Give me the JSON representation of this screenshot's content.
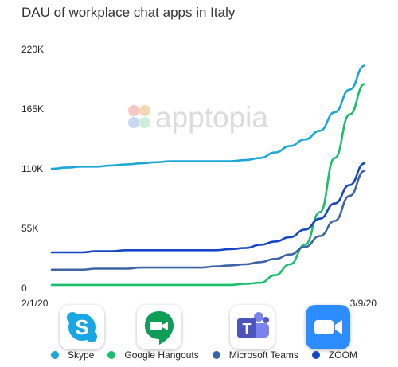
{
  "title": "DAU of workplace chat apps in Italy",
  "watermark": "apptopia",
  "chart_data": {
    "type": "line",
    "title": "DAU of workplace chat apps in Italy",
    "x": [
      "2/1/20",
      "2/3/20",
      "2/5/20",
      "2/7/20",
      "2/9/20",
      "2/11/20",
      "2/13/20",
      "2/15/20",
      "2/17/20",
      "2/19/20",
      "2/21/20",
      "2/23/20",
      "2/25/20",
      "2/27/20",
      "2/29/20",
      "3/2/20",
      "3/4/20",
      "3/5/20",
      "3/6/20",
      "3/7/20",
      "3/8/20",
      "3/9/20"
    ],
    "x_tick_labels": [
      "2/1/20",
      "3/9/20"
    ],
    "y_ticks": [
      0,
      55000,
      110000,
      165000,
      220000
    ],
    "y_tick_labels": [
      "0",
      "55K",
      "110K",
      "165K",
      "220K"
    ],
    "ylim": [
      0,
      220000
    ],
    "grid": false,
    "legend_position": "bottom",
    "series": [
      {
        "name": "Skype",
        "color": "#1aa7d8",
        "values": [
          110000,
          111000,
          112000,
          112000,
          113000,
          114000,
          115000,
          116000,
          117000,
          117000,
          117000,
          117000,
          117000,
          118000,
          120000,
          125000,
          131000,
          137000,
          145000,
          162000,
          183000,
          205000
        ]
      },
      {
        "name": "Google Hangouts",
        "color": "#19c06a",
        "values": [
          3000,
          3000,
          3000,
          3000,
          3000,
          3000,
          3000,
          3000,
          3000,
          3000,
          3000,
          3000,
          3000,
          4000,
          5000,
          12000,
          22000,
          40000,
          70000,
          120000,
          160000,
          188000
        ]
      },
      {
        "name": "Microsoft Teams",
        "color": "#3f64a6",
        "values": [
          17000,
          17000,
          17000,
          18000,
          18000,
          18000,
          19000,
          19000,
          19000,
          19000,
          19000,
          20000,
          21000,
          22000,
          24000,
          27000,
          31000,
          38000,
          48000,
          62000,
          85000,
          108000
        ]
      },
      {
        "name": "ZOOM",
        "color": "#1446c6",
        "values": [
          33000,
          33000,
          33000,
          34000,
          34000,
          35000,
          35000,
          35000,
          35000,
          35000,
          35000,
          35000,
          36000,
          37000,
          40000,
          43000,
          47000,
          54000,
          64000,
          78000,
          95000,
          115000
        ]
      }
    ]
  },
  "app_icons": [
    "skype-app-icon",
    "google-hangouts-app-icon",
    "microsoft-teams-app-icon",
    "zoom-app-icon"
  ]
}
